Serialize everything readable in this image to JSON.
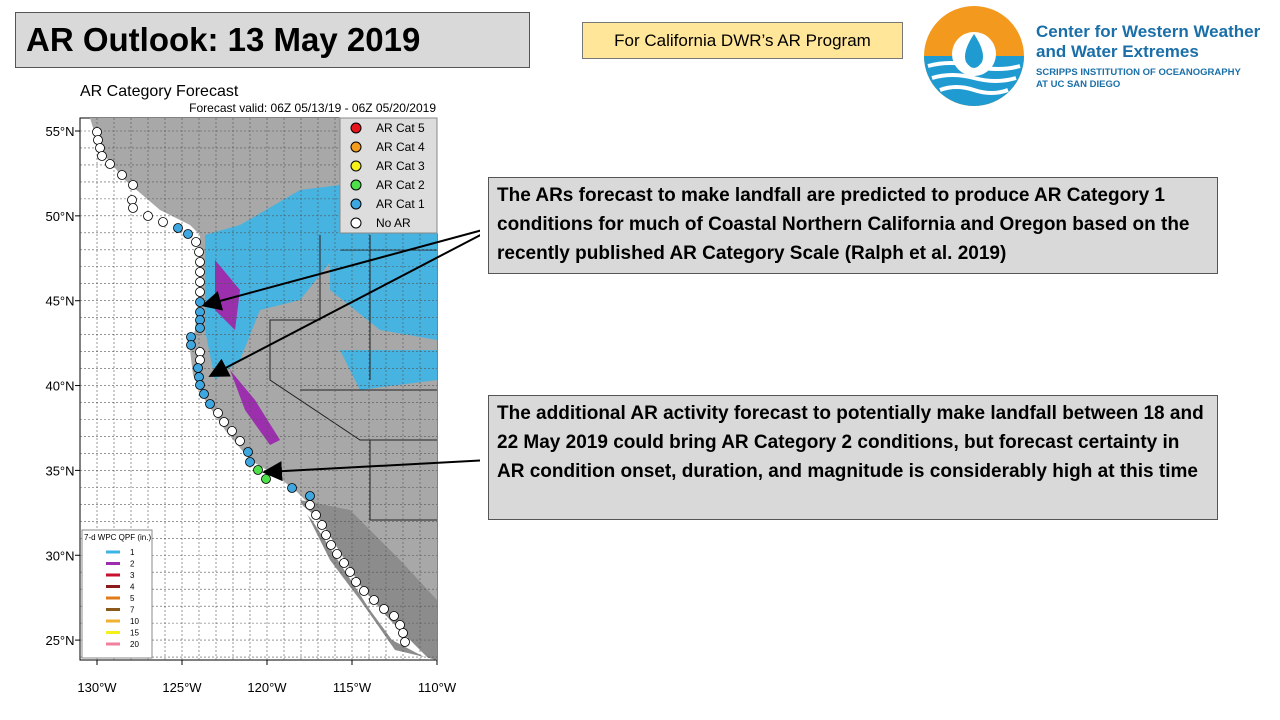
{
  "header": {
    "title": "AR Outlook: 13 May 2019",
    "tag": "For California DWR’s AR Program"
  },
  "logo": {
    "name": [
      "Center for Western Weather",
      "and Water Extremes"
    ],
    "sub": [
      "SCRIPPS INSTITUTION OF OCEANOGRAPHY",
      "AT UC SAN DIEGO"
    ]
  },
  "map": {
    "title": "AR Category Forecast",
    "subtitle": "Forecast valid: 06Z 05/13/19 - 06Z 05/20/2019",
    "lat_labels": [
      "55°N",
      "50°N",
      "45°N",
      "40°N",
      "35°N",
      "30°N",
      "25°N"
    ],
    "lon_labels": [
      "130°W",
      "125°W",
      "120°W",
      "115°W",
      "110°W"
    ],
    "legend": [
      {
        "label": "AR Cat 5",
        "color": "#e8141b"
      },
      {
        "label": "AR Cat 4",
        "color": "#f39c1e"
      },
      {
        "label": "AR Cat 3",
        "color": "#f5f01a"
      },
      {
        "label": "AR Cat 2",
        "color": "#4ee04a"
      },
      {
        "label": "AR Cat 1",
        "color": "#3fa7e0"
      },
      {
        "label": "No AR",
        "color": "#ffffff"
      }
    ],
    "qpf_legend": {
      "title": "7-d WPC QPF (in.)",
      "items": [
        {
          "label": "1",
          "color": "#3cb4e6"
        },
        {
          "label": "2",
          "color": "#9b2fae"
        },
        {
          "label": "3",
          "color": "#c8102e"
        },
        {
          "label": "4",
          "color": "#8b1a1a"
        },
        {
          "label": "5",
          "color": "#e07b1a"
        },
        {
          "label": "7",
          "color": "#8b5a1a"
        },
        {
          "label": "10",
          "color": "#f0b030"
        },
        {
          "label": "15",
          "color": "#f5f01a"
        },
        {
          "label": "20",
          "color": "#f07fa0"
        }
      ]
    }
  },
  "callouts": [
    "The ARs forecast to make landfall are predicted to produce AR Category 1 conditions for much of Coastal Northern California and Oregon based on the recently published AR Category Scale (Ralph et al. 2019)",
    "The additional AR activity forecast to potentially make landfall between 18 and 22 May 2019 could bring AR Category 2 conditions, but forecast certainty in AR condition onset, duration, and magnitude is considerably high at this time"
  ]
}
